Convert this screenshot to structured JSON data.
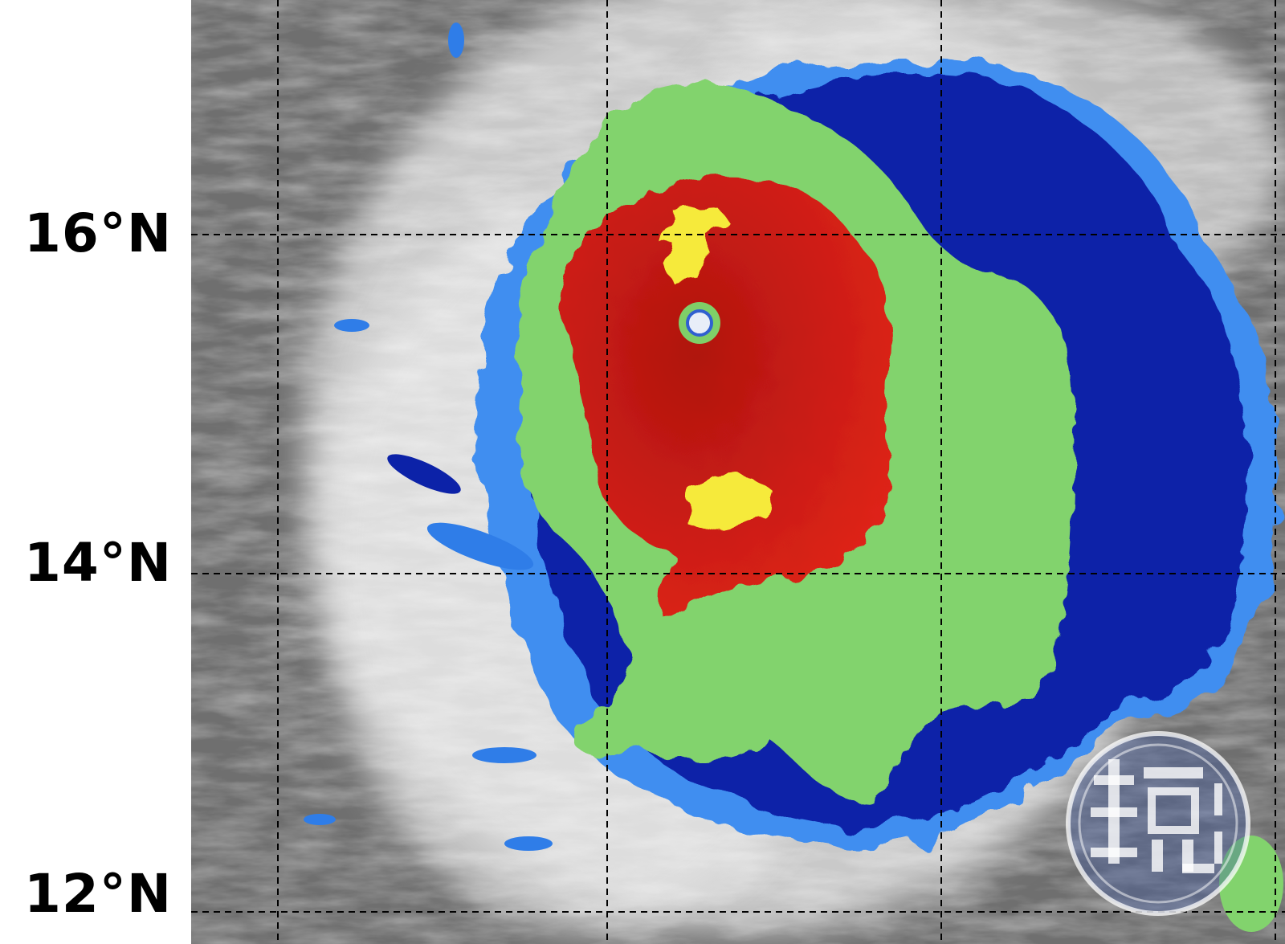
{
  "latitude_labels": [
    {
      "label": "16°N",
      "value": 16
    },
    {
      "label": "14°N",
      "value": 14
    },
    {
      "label": "12°N",
      "value": 12
    }
  ],
  "gridlines": {
    "style": "dashed",
    "color": "#000000"
  },
  "colors": {
    "background_clouds": "#8a8a8a",
    "cold_blue": "#1e5fd8",
    "dark_blue": "#0a20a0",
    "green": "#7fd06a",
    "red": "#d01c12",
    "yellow": "#f6ea3a"
  },
  "watermark": {
    "logo": "鏡週刊",
    "icon": "mirror-media-logo"
  }
}
